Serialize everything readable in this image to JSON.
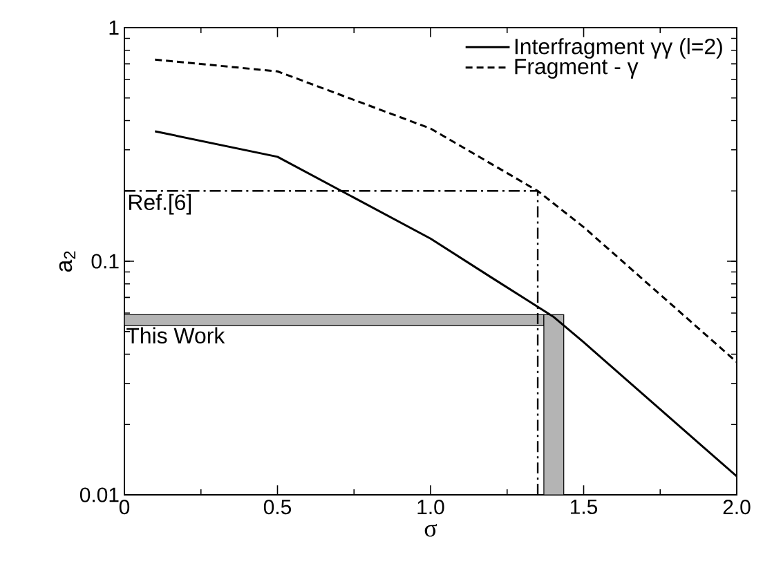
{
  "chart_data": {
    "type": "line",
    "xlabel": "σ",
    "ylabel": "a$_{2}$",
    "log": "y",
    "xlim": [
      0,
      2
    ],
    "ylim": [
      0.01,
      1
    ],
    "xticks": [
      0,
      0.5,
      {
        "value": 1,
        "label": "1.0"
      },
      1.5,
      {
        "value": 2,
        "label": "2.0"
      }
    ],
    "yticks": [
      0.01,
      0.1,
      1
    ],
    "legend": "top right",
    "grid": false,
    "series": [
      {
        "name": "Interfragment γγ (l=2)",
        "color": "#000000",
        "line_style": "solid",
        "x": [
          0.1,
          0.5,
          1.0,
          1.2,
          1.4,
          1.5,
          2.0
        ],
        "values": [
          0.36,
          0.28,
          0.125,
          0.085,
          0.058,
          0.045,
          0.012
        ]
      },
      {
        "name": "Fragment - γ",
        "color": "#000000",
        "line_style": "dashed",
        "x": [
          0.1,
          0.5,
          1.0,
          1.35,
          1.5,
          2.0
        ],
        "values": [
          0.73,
          0.65,
          0.37,
          0.2,
          0.14,
          0.037
        ]
      }
    ],
    "ref_lines": [
      {
        "axis": "y",
        "value": 0.2,
        "label": "Ref.[6]",
        "color": "#000000",
        "line_style": "dashdot"
      },
      {
        "axis": "x",
        "value": 1.35,
        "color": "#000000",
        "line_style": "dashdot"
      }
    ],
    "bands": [
      {
        "axis": "y",
        "from": 0.053,
        "to": 0.059,
        "label": "This Work",
        "color": "#b4b4b4"
      },
      {
        "axis": "x",
        "from": 1.37,
        "to": 1.435,
        "color": "#b4b4b4"
      }
    ]
  }
}
